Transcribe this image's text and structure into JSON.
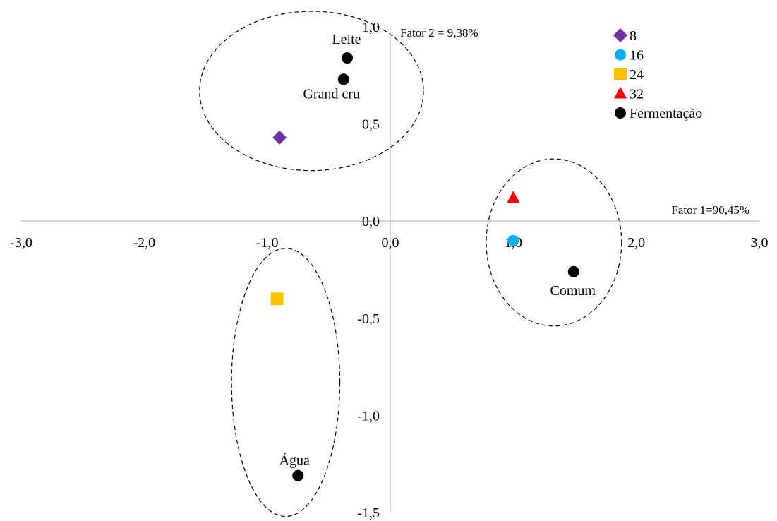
{
  "chart_data": {
    "type": "scatter",
    "x_axis_title": "Fator 1=90,45%",
    "y_axis_title": "Fator 2 = 9,38%",
    "xlim": [
      -3.0,
      3.0
    ],
    "ylim": [
      -1.5,
      1.0
    ],
    "x_ticks": [
      {
        "value": -3.0,
        "label": "-3,0"
      },
      {
        "value": -2.0,
        "label": "-2,0"
      },
      {
        "value": -1.0,
        "label": "-1,0"
      },
      {
        "value": 0.0,
        "label": "0,0"
      },
      {
        "value": 1.0,
        "label": "1,0"
      },
      {
        "value": 2.0,
        "label": "2,0"
      },
      {
        "value": 3.0,
        "label": "3,0"
      }
    ],
    "y_ticks": [
      {
        "value": 1.0,
        "label": "1,0"
      },
      {
        "value": 0.5,
        "label": "0,5"
      },
      {
        "value": 0.0,
        "label": "0,0"
      },
      {
        "value": -0.5,
        "label": "-0,5"
      },
      {
        "value": -1.0,
        "label": "-1,0"
      },
      {
        "value": -1.5,
        "label": "-1,5"
      }
    ],
    "legend_position": "top-right",
    "series": [
      {
        "name": "8",
        "marker": "diamond",
        "color": "#7030A0",
        "points": [
          {
            "x": -0.9,
            "y": 0.43
          }
        ]
      },
      {
        "name": "16",
        "marker": "circle",
        "color": "#00B0F0",
        "points": [
          {
            "x": 1.0,
            "y": -0.1
          }
        ]
      },
      {
        "name": "24",
        "marker": "square",
        "color": "#FFC000",
        "points": [
          {
            "x": -0.92,
            "y": -0.4
          }
        ]
      },
      {
        "name": "32",
        "marker": "triangle",
        "color": "#FF0000",
        "points": [
          {
            "x": 1.0,
            "y": 0.12
          }
        ]
      },
      {
        "name": "Fermentação",
        "marker": "circle",
        "color": "#000000",
        "points": [
          {
            "x": -0.35,
            "y": 0.84,
            "label": "Leite"
          },
          {
            "x": -0.38,
            "y": 0.73,
            "label": "Grand cru"
          },
          {
            "x": 1.49,
            "y": -0.26,
            "label": "Comum"
          },
          {
            "x": -0.75,
            "y": -1.31,
            "label": "Água"
          }
        ]
      }
    ],
    "groups": [
      {
        "center": [
          -0.64,
          0.67
        ],
        "radius": [
          0.91,
          0.41
        ]
      },
      {
        "center": [
          1.33,
          -0.11
        ],
        "radius": [
          0.55,
          0.43
        ]
      },
      {
        "center": [
          -0.85,
          -0.83
        ],
        "radius": [
          0.44,
          0.69
        ]
      }
    ]
  }
}
